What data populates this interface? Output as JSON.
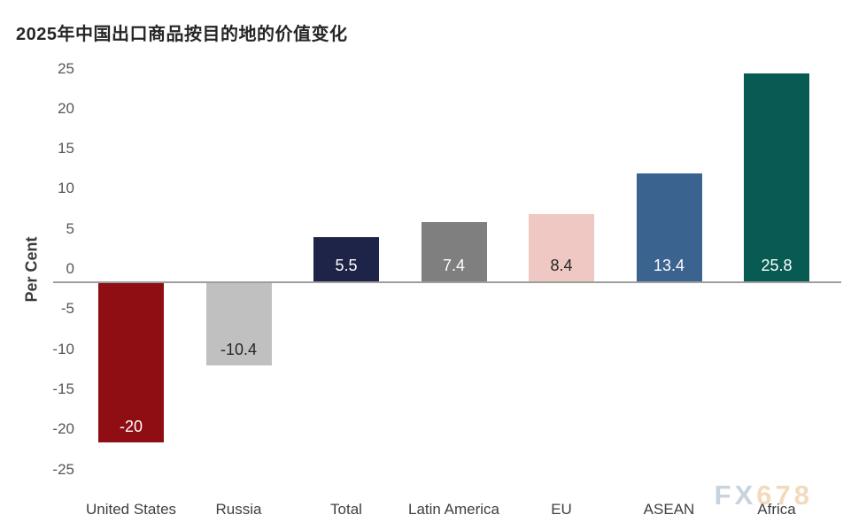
{
  "title": "2025年中国出口商品按目的地的价值变化",
  "watermark": {
    "fx": "FX",
    "num": "678"
  },
  "colors": {
    "axis_line": "#9e9e9e",
    "title_text": "#262626",
    "tick_text": "#565656",
    "category_text": "#3f3f3f",
    "watermark_fx": "#c9d3de",
    "watermark_num": "#f2dabd"
  },
  "chart_data": {
    "type": "bar",
    "title": "2025年中国出口商品按目的地的价值变化",
    "xlabel": "",
    "ylabel": "Per Cent",
    "categories": [
      "United States",
      "Russia",
      "Total",
      "Latin America",
      "EU",
      "ASEAN",
      "Africa"
    ],
    "values": [
      -20,
      -10.4,
      5.5,
      7.4,
      8.4,
      13.4,
      25.8
    ],
    "data_labels": [
      "-20",
      "-10.4",
      "5.5",
      "7.4",
      "8.4",
      "13.4",
      "25.8"
    ],
    "bar_colors": [
      "#8f0e13",
      "#c0c0c0",
      "#1e2448",
      "#7f7f7f",
      "#efc8c3",
      "#3a6390",
      "#075b53"
    ],
    "label_colors": [
      "#ffffff",
      "#262626",
      "#ffffff",
      "#ffffff",
      "#262626",
      "#ffffff",
      "#ffffff"
    ],
    "yticks": [
      25,
      20,
      15,
      10,
      5,
      0,
      -5,
      -10,
      -15,
      -20,
      -25
    ],
    "ylim": [
      -25,
      25
    ],
    "grid": false,
    "legend": null,
    "watermark_text": "FX678"
  }
}
